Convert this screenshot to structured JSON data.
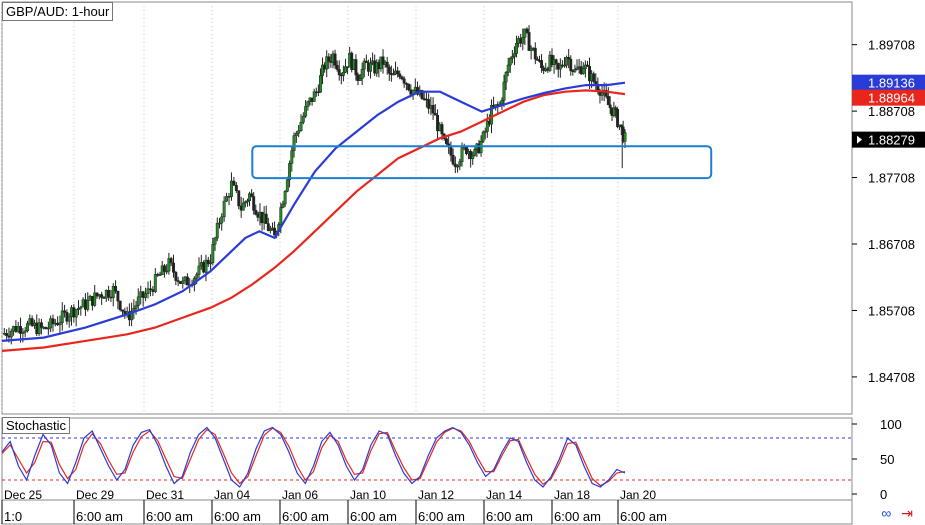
{
  "header": {
    "title": "GBP/AUD: 1-hour"
  },
  "stochastic": {
    "label": "Stochastic",
    "levels": [
      "100",
      "50",
      "0"
    ]
  },
  "toolbar_icons": [
    "link-chain-icon",
    "arrow-right-icon"
  ],
  "colors": {
    "bull": "#1f8f1f",
    "bear": "#222222",
    "ma_fast": "#2a3cd8",
    "ma_slow": "#e8261c",
    "box": "#1c7fd6",
    "stoch_k": "#2a3cd8",
    "stoch_d": "#e8261c",
    "grid": "#c8c8c8"
  },
  "chart_data": {
    "type": "candlestick",
    "title": "GBP/AUD: 1-hour",
    "ylim": [
      1.8415,
      1.9035
    ],
    "y_ticks": [
      "1.89708",
      "1.88708",
      "1.87708",
      "1.86708",
      "1.85708",
      "1.84708"
    ],
    "x_date_labels": [
      "Dec 25",
      "Dec 29",
      "Dec 31",
      "Jan 04",
      "Jan 06",
      "Jan 10",
      "Jan 12",
      "Jan 14",
      "Jan 18",
      "Jan 20"
    ],
    "x_time_labels": [
      "1:0",
      "6:00 am",
      "6:00 am",
      "6:00 am",
      "6:00 am",
      "6:00 am",
      "6:00 am",
      "6:00 am",
      "6:00 am",
      "6:00 am"
    ],
    "price_labels": [
      {
        "text": "1.89136",
        "value": 1.89136,
        "bg": "#2a3cd8",
        "fg": "#ffffff"
      },
      {
        "text": "1.88964",
        "value": 1.88964,
        "bg": "#e8261c",
        "fg": "#ffffff"
      },
      {
        "text": "1.88279",
        "value": 1.88279,
        "bg": "#000000",
        "fg": "#ffffff"
      }
    ],
    "close_path": [
      [
        0,
        1.8535
      ],
      [
        10,
        1.8545
      ],
      [
        20,
        1.8548
      ],
      [
        30,
        1.8542
      ],
      [
        40,
        1.8555
      ],
      [
        50,
        1.857
      ],
      [
        60,
        1.858
      ],
      [
        70,
        1.8595
      ],
      [
        80,
        1.8602
      ],
      [
        90,
        1.856
      ],
      [
        98,
        1.8585
      ],
      [
        105,
        1.8598
      ],
      [
        112,
        1.862
      ],
      [
        120,
        1.864
      ],
      [
        130,
        1.861
      ],
      [
        140,
        1.8625
      ],
      [
        150,
        1.865
      ],
      [
        158,
        1.872
      ],
      [
        165,
        1.876
      ],
      [
        172,
        1.8725
      ],
      [
        178,
        1.8745
      ],
      [
        184,
        1.872
      ],
      [
        190,
        1.87
      ],
      [
        196,
        1.868
      ],
      [
        202,
        1.874
      ],
      [
        210,
        1.883
      ],
      [
        220,
        1.888
      ],
      [
        226,
        1.89
      ],
      [
        232,
        1.894
      ],
      [
        238,
        1.8955
      ],
      [
        244,
        1.893
      ],
      [
        250,
        1.895
      ],
      [
        256,
        1.8925
      ],
      [
        262,
        1.894
      ],
      [
        268,
        1.8935
      ],
      [
        274,
        1.8945
      ],
      [
        280,
        1.892
      ],
      [
        286,
        1.893
      ],
      [
        294,
        1.8905
      ],
      [
        302,
        1.889
      ],
      [
        310,
        1.887
      ],
      [
        318,
        1.882
      ],
      [
        326,
        1.8795
      ],
      [
        334,
        1.8815
      ],
      [
        340,
        1.8805
      ],
      [
        346,
        1.883
      ],
      [
        352,
        1.887
      ],
      [
        358,
        1.888
      ],
      [
        364,
        1.894
      ],
      [
        370,
        1.8975
      ],
      [
        376,
        1.8985
      ],
      [
        382,
        1.896
      ],
      [
        388,
        1.8935
      ],
      [
        394,
        1.8945
      ],
      [
        400,
        1.893
      ],
      [
        406,
        1.8955
      ],
      [
        412,
        1.893
      ],
      [
        418,
        1.894
      ],
      [
        424,
        1.892
      ],
      [
        430,
        1.8905
      ],
      [
        436,
        1.888
      ],
      [
        440,
        1.887
      ],
      [
        444,
        1.885
      ],
      [
        448,
        1.8828
      ]
    ],
    "ma_fast": [
      [
        0,
        1.8525
      ],
      [
        30,
        1.853
      ],
      [
        60,
        1.8545
      ],
      [
        90,
        1.8565
      ],
      [
        110,
        1.858
      ],
      [
        130,
        1.86
      ],
      [
        150,
        1.863
      ],
      [
        165,
        1.866
      ],
      [
        175,
        1.868
      ],
      [
        185,
        1.869
      ],
      [
        196,
        1.868
      ],
      [
        210,
        1.873
      ],
      [
        225,
        1.878
      ],
      [
        240,
        1.8815
      ],
      [
        255,
        1.884
      ],
      [
        270,
        1.8865
      ],
      [
        285,
        1.8885
      ],
      [
        300,
        1.89
      ],
      [
        315,
        1.89
      ],
      [
        330,
        1.8885
      ],
      [
        345,
        1.887
      ],
      [
        360,
        1.888
      ],
      [
        375,
        1.889
      ],
      [
        390,
        1.8898
      ],
      [
        405,
        1.8905
      ],
      [
        420,
        1.891
      ],
      [
        435,
        1.891
      ],
      [
        448,
        1.89136
      ]
    ],
    "ma_slow": [
      [
        0,
        1.851
      ],
      [
        30,
        1.8515
      ],
      [
        60,
        1.8525
      ],
      [
        90,
        1.8535
      ],
      [
        110,
        1.8545
      ],
      [
        130,
        1.856
      ],
      [
        150,
        1.8575
      ],
      [
        165,
        1.859
      ],
      [
        180,
        1.861
      ],
      [
        196,
        1.8635
      ],
      [
        210,
        1.866
      ],
      [
        225,
        1.869
      ],
      [
        240,
        1.872
      ],
      [
        255,
        1.875
      ],
      [
        270,
        1.8775
      ],
      [
        285,
        1.88
      ],
      [
        300,
        1.8815
      ],
      [
        315,
        1.883
      ],
      [
        330,
        1.884
      ],
      [
        345,
        1.8855
      ],
      [
        360,
        1.887
      ],
      [
        375,
        1.8885
      ],
      [
        390,
        1.8895
      ],
      [
        405,
        1.89
      ],
      [
        420,
        1.8902
      ],
      [
        435,
        1.89
      ],
      [
        448,
        1.88964
      ]
    ],
    "support_zone": {
      "x_start": 180,
      "x_end": 510,
      "y_low": 1.877,
      "y_high": 1.8818
    },
    "stochastic": {
      "ylim": [
        0,
        100
      ],
      "overbought": 80,
      "oversold": 20,
      "k": [
        60,
        75,
        40,
        20,
        55,
        85,
        70,
        30,
        15,
        45,
        80,
        90,
        65,
        40,
        20,
        35,
        70,
        88,
        92,
        70,
        40,
        15,
        25,
        60,
        85,
        95,
        80,
        50,
        20,
        10,
        30,
        65,
        90,
        95,
        85,
        60,
        30,
        15,
        40,
        75,
        88,
        70,
        40,
        20,
        35,
        70,
        90,
        85,
        55,
        30,
        15,
        25,
        55,
        80,
        90,
        95,
        88,
        70,
        45,
        25,
        35,
        60,
        80,
        75,
        45,
        20,
        10,
        25,
        50,
        80,
        70,
        40,
        15,
        10,
        20,
        35,
        30
      ],
      "d": [
        58,
        70,
        50,
        30,
        45,
        75,
        74,
        42,
        22,
        35,
        70,
        86,
        72,
        48,
        28,
        30,
        60,
        82,
        90,
        76,
        50,
        25,
        22,
        50,
        78,
        92,
        85,
        58,
        30,
        15,
        25,
        55,
        84,
        94,
        88,
        68,
        40,
        20,
        32,
        66,
        84,
        75,
        48,
        28,
        30,
        62,
        86,
        88,
        62,
        38,
        20,
        22,
        48,
        74,
        88,
        94,
        90,
        75,
        52,
        32,
        32,
        55,
        76,
        78,
        52,
        28,
        14,
        22,
        44,
        72,
        74,
        48,
        22,
        12,
        18,
        30,
        32
      ]
    }
  }
}
